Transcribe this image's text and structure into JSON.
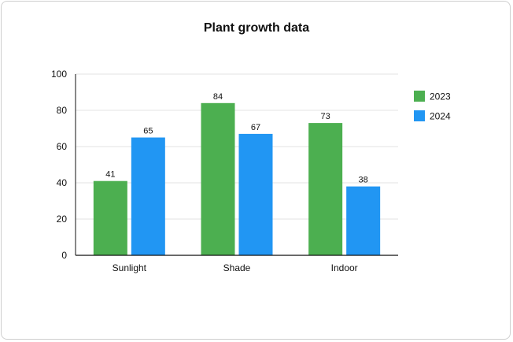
{
  "chart_data": {
    "type": "bar",
    "title": "Plant growth data",
    "categories": [
      "Sunlight",
      "Shade",
      "Indoor"
    ],
    "series": [
      {
        "name": "2023",
        "values": [
          41,
          84,
          73
        ],
        "color": "#4caf50"
      },
      {
        "name": "2024",
        "values": [
          65,
          67,
          38
        ],
        "color": "#2196f3"
      }
    ],
    "ylim": [
      0,
      100
    ],
    "yticks": [
      0,
      20,
      40,
      60,
      80,
      100
    ],
    "grid": true,
    "legend_position": "right",
    "data_labels": true
  }
}
